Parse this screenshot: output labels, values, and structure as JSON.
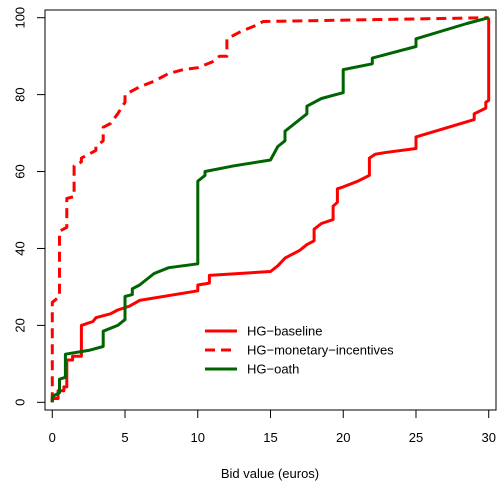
{
  "chart_data": {
    "type": "line",
    "title": "",
    "xlabel": "Bid value (euros)",
    "ylabel": "",
    "xlim": [
      -0.5,
      30.5
    ],
    "ylim": [
      -2,
      102
    ],
    "grid": false,
    "legend_position": "bottom-right",
    "x_ticks": [
      "0",
      "5",
      "10",
      "15",
      "20",
      "25",
      "30"
    ],
    "y_ticks": [
      "0",
      "20",
      "40",
      "60",
      "80",
      "100"
    ],
    "series": [
      {
        "name": "HG−baseline",
        "color": "#ff0000",
        "dash": "solid",
        "points": [
          [
            0,
            0
          ],
          [
            0,
            1
          ],
          [
            0.4,
            1
          ],
          [
            0.4,
            3
          ],
          [
            0.8,
            3
          ],
          [
            0.8,
            4
          ],
          [
            1.0,
            4
          ],
          [
            1.0,
            11
          ],
          [
            1.4,
            11
          ],
          [
            1.4,
            12
          ],
          [
            2.0,
            12
          ],
          [
            2.0,
            20
          ],
          [
            2.8,
            21
          ],
          [
            3.0,
            22
          ],
          [
            4.0,
            23
          ],
          [
            4.5,
            24
          ],
          [
            5.3,
            25
          ],
          [
            6.0,
            26.5
          ],
          [
            10.0,
            29
          ],
          [
            10.0,
            30.5
          ],
          [
            10.8,
            31
          ],
          [
            10.8,
            33
          ],
          [
            15.0,
            34
          ],
          [
            15.5,
            35.5
          ],
          [
            16.0,
            37.5
          ],
          [
            17.0,
            39.5
          ],
          [
            17.5,
            41
          ],
          [
            18.0,
            42
          ],
          [
            18.0,
            45
          ],
          [
            18.5,
            46.5
          ],
          [
            19.3,
            47.5
          ],
          [
            19.3,
            51
          ],
          [
            19.6,
            52
          ],
          [
            19.6,
            55.5
          ],
          [
            20.0,
            56
          ],
          [
            21.0,
            57.5
          ],
          [
            21.8,
            59
          ],
          [
            21.8,
            63.5
          ],
          [
            22.2,
            64.5
          ],
          [
            23.0,
            65
          ],
          [
            25.0,
            66
          ],
          [
            25.0,
            69
          ],
          [
            29.0,
            73.5
          ],
          [
            29.0,
            75
          ],
          [
            29.8,
            76.5
          ],
          [
            29.8,
            78
          ],
          [
            30.0,
            78.5
          ],
          [
            30.0,
            100
          ]
        ]
      },
      {
        "name": "HG−monetary−incentives",
        "color": "#ff0000",
        "dash": "dashed",
        "points": [
          [
            0,
            0
          ],
          [
            0,
            26
          ],
          [
            0.5,
            27.5
          ],
          [
            0.5,
            44.5
          ],
          [
            1.0,
            45.5
          ],
          [
            1.0,
            53
          ],
          [
            1.5,
            53.5
          ],
          [
            1.5,
            61.5
          ],
          [
            2.0,
            62.5
          ],
          [
            2.0,
            63.5
          ],
          [
            3.0,
            65.5
          ],
          [
            3.0,
            66.5
          ],
          [
            3.5,
            68
          ],
          [
            3.5,
            71.5
          ],
          [
            4.0,
            72.5
          ],
          [
            4.5,
            75
          ],
          [
            5.0,
            78
          ],
          [
            5.0,
            80
          ],
          [
            6.0,
            82
          ],
          [
            7.0,
            83.5
          ],
          [
            8.0,
            85.5
          ],
          [
            9.0,
            86.5
          ],
          [
            10.0,
            87
          ],
          [
            11.0,
            88.5
          ],
          [
            11.5,
            90
          ],
          [
            12.0,
            90
          ],
          [
            12.0,
            94.5
          ],
          [
            13.0,
            96.5
          ],
          [
            14.0,
            98
          ],
          [
            14.5,
            99
          ],
          [
            30.0,
            100
          ]
        ]
      },
      {
        "name": "HG−oath",
        "color": "#006400",
        "dash": "solid",
        "points": [
          [
            0,
            0
          ],
          [
            0,
            1.5
          ],
          [
            0.5,
            2.5
          ],
          [
            0.5,
            6
          ],
          [
            0.9,
            6.5
          ],
          [
            0.9,
            12.5
          ],
          [
            2.5,
            13.5
          ],
          [
            3.5,
            14.5
          ],
          [
            3.5,
            18.5
          ],
          [
            4.5,
            20
          ],
          [
            5.0,
            21.5
          ],
          [
            5.0,
            27.5
          ],
          [
            5.5,
            28
          ],
          [
            5.5,
            29.5
          ],
          [
            6.0,
            30.5
          ],
          [
            7.0,
            33.5
          ],
          [
            8.0,
            35
          ],
          [
            10.0,
            36
          ],
          [
            10.0,
            57.5
          ],
          [
            10.5,
            59
          ],
          [
            10.5,
            60
          ],
          [
            12.5,
            61.5
          ],
          [
            15.0,
            63
          ],
          [
            15.5,
            66.5
          ],
          [
            16.0,
            68
          ],
          [
            16.0,
            70.5
          ],
          [
            17.5,
            75
          ],
          [
            17.5,
            77
          ],
          [
            18.5,
            79
          ],
          [
            19.5,
            80
          ],
          [
            20.0,
            80.5
          ],
          [
            20.0,
            86.5
          ],
          [
            22.0,
            88
          ],
          [
            22.0,
            89.5
          ],
          [
            23.0,
            90.5
          ],
          [
            25.0,
            92.5
          ],
          [
            25.0,
            94.5
          ],
          [
            28.5,
            98.5
          ],
          [
            30.0,
            100
          ]
        ]
      }
    ]
  }
}
